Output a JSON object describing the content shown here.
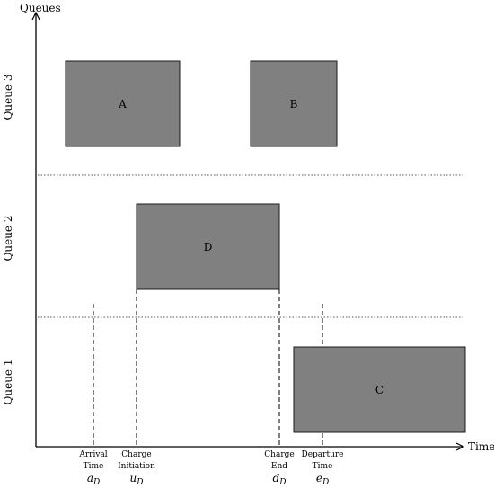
{
  "axes": {
    "y_title": "Queues",
    "x_title": "Time"
  },
  "queues": [
    {
      "label": "Queue 3"
    },
    {
      "label": "Queue 2"
    },
    {
      "label": "Queue 1"
    }
  ],
  "blocks": {
    "a": "A",
    "b": "B",
    "d": "D",
    "c": "C"
  },
  "markers": {
    "arrival": {
      "line1": "Arrival",
      "line2": "Time",
      "sym": "a",
      "sub": "D"
    },
    "charge_init": {
      "line1": "Charge",
      "line2": "Initiation",
      "sym": "u",
      "sub": "D"
    },
    "charge_end": {
      "line1": "Charge",
      "line2": "End",
      "sym": "d",
      "sub": "D"
    },
    "departure": {
      "line1": "Departure",
      "line2": "Time",
      "sym": "e",
      "sub": "D"
    }
  },
  "colors": {
    "block_fill": "#808080",
    "block_stroke": "#1a1a1a",
    "axis": "#000000"
  }
}
